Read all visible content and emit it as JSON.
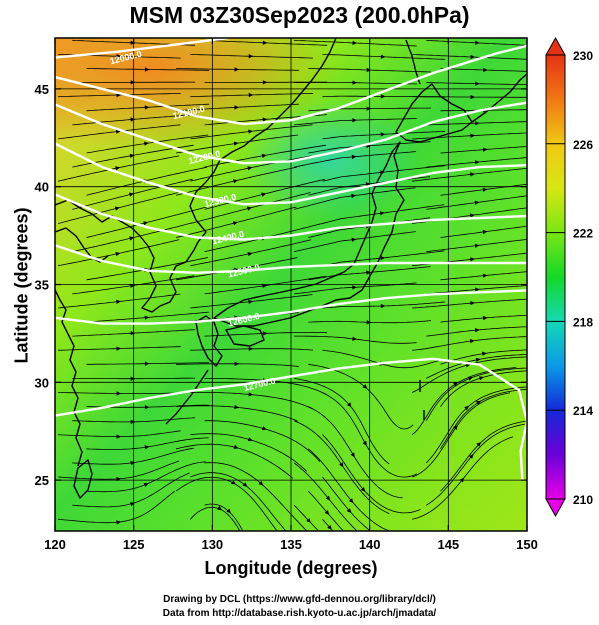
{
  "title": "MSM 03Z30Sep2023 (200.0hPa)",
  "credits": {
    "line1": "Drawing by DCL (https://www.gfd-dennou.org/library/dcl/)",
    "line2": "Data from http://database.rish.kyoto-u.ac.jp/arch/jmadata/"
  },
  "chart_data": {
    "type": "heatmap",
    "title": "MSM 03Z30Sep2023 (200.0hPa)",
    "xlabel": "Longitude (degrees)",
    "ylabel": "Latitude  (degrees)",
    "xlim": [
      120,
      150
    ],
    "ylim": [
      22.4,
      47.6
    ],
    "xticks": [
      120,
      125,
      130,
      135,
      140,
      145,
      150
    ],
    "yticks": [
      25,
      30,
      35,
      40,
      45
    ],
    "grid": true,
    "colorbar": {
      "min": 210,
      "max": 230,
      "ticks": [
        210,
        214,
        218,
        222,
        226,
        230
      ],
      "colors": [
        "#e600e6",
        "#6a00d8",
        "#1428d8",
        "#0a9ae6",
        "#14d8b4",
        "#14d828",
        "#7ae614",
        "#d8e614",
        "#f0c814",
        "#f07814",
        "#e63214"
      ]
    },
    "contours": [
      {
        "label": "12000.0",
        "lon": 124.5,
        "lat": 46.6,
        "points": [
          [
            120,
            46.6
          ],
          [
            124,
            46.9
          ],
          [
            128,
            47.3
          ],
          [
            131,
            47.6
          ]
        ]
      },
      {
        "label": "12100.0",
        "lon": 128.5,
        "lat": 43.8,
        "points": [
          [
            120,
            45.6
          ],
          [
            123,
            45.0
          ],
          [
            126,
            44.4
          ],
          [
            129,
            43.6
          ],
          [
            132,
            43.2
          ],
          [
            135,
            43.4
          ],
          [
            138,
            44.0
          ],
          [
            141,
            44.9
          ],
          [
            144,
            45.8
          ],
          [
            148,
            46.8
          ],
          [
            150,
            47.2
          ]
        ]
      },
      {
        "label": "12200.0",
        "lon": 129.5,
        "lat": 41.5,
        "points": [
          [
            120,
            44.2
          ],
          [
            123,
            43.2
          ],
          [
            126,
            42.4
          ],
          [
            129,
            41.6
          ],
          [
            132,
            41.2
          ],
          [
            135,
            41.3
          ],
          [
            138,
            41.8
          ],
          [
            141,
            42.4
          ],
          [
            144,
            43.3
          ],
          [
            147,
            43.9
          ],
          [
            150,
            44.3
          ]
        ]
      },
      {
        "label": "12300.0",
        "lon": 130.5,
        "lat": 39.3,
        "points": [
          [
            120,
            42.2
          ],
          [
            123,
            41.0
          ],
          [
            126,
            40.2
          ],
          [
            129,
            39.5
          ],
          [
            132,
            39.1
          ],
          [
            135,
            39.2
          ],
          [
            138,
            39.7
          ],
          [
            141,
            40.2
          ],
          [
            144,
            40.7
          ],
          [
            147,
            41.0
          ],
          [
            150,
            41.1
          ]
        ]
      },
      {
        "label": "12400.0",
        "lon": 131.0,
        "lat": 37.4,
        "points": [
          [
            120,
            39.6
          ],
          [
            123,
            38.6
          ],
          [
            126,
            37.9
          ],
          [
            129,
            37.4
          ],
          [
            132,
            37.3
          ],
          [
            135,
            37.5
          ],
          [
            138,
            37.9
          ],
          [
            141,
            38.1
          ],
          [
            144,
            38.3
          ],
          [
            147,
            38.4
          ],
          [
            150,
            38.5
          ]
        ]
      },
      {
        "label": "12500.0",
        "lon": 132.0,
        "lat": 35.7,
        "points": [
          [
            120,
            37.0
          ],
          [
            123,
            36.2
          ],
          [
            126,
            35.7
          ],
          [
            129,
            35.6
          ],
          [
            132,
            35.7
          ],
          [
            135,
            35.9
          ],
          [
            138,
            36.0
          ],
          [
            141,
            36.1
          ],
          [
            144,
            36.1
          ],
          [
            147,
            36.1
          ],
          [
            150,
            36.1
          ]
        ]
      },
      {
        "label": "12600.0",
        "lon": 132.0,
        "lat": 33.2,
        "points": [
          [
            120,
            33.3
          ],
          [
            123,
            33.0
          ],
          [
            126,
            33.0
          ],
          [
            129,
            33.1
          ],
          [
            132,
            33.3
          ],
          [
            135,
            33.6
          ],
          [
            138,
            34.0
          ],
          [
            141,
            34.3
          ],
          [
            144,
            34.5
          ],
          [
            147,
            34.6
          ],
          [
            150,
            34.7
          ]
        ]
      },
      {
        "label": "12700.0",
        "lon": 133.0,
        "lat": 29.9,
        "points": [
          [
            120,
            28.3
          ],
          [
            123,
            28.7
          ],
          [
            126,
            29.2
          ],
          [
            129,
            29.6
          ],
          [
            132,
            29.9
          ],
          [
            135,
            30.3
          ],
          [
            138,
            30.7
          ],
          [
            141,
            31.0
          ],
          [
            144,
            31.2
          ],
          [
            147,
            30.9
          ],
          [
            149.5,
            29.6
          ],
          [
            150,
            28.0
          ]
        ]
      },
      {
        "label": "",
        "lon": 150,
        "lat": 26,
        "points": [
          [
            150,
            28.0
          ],
          [
            149.6,
            26.5
          ],
          [
            149.7,
            25.0
          ]
        ]
      }
    ]
  }
}
